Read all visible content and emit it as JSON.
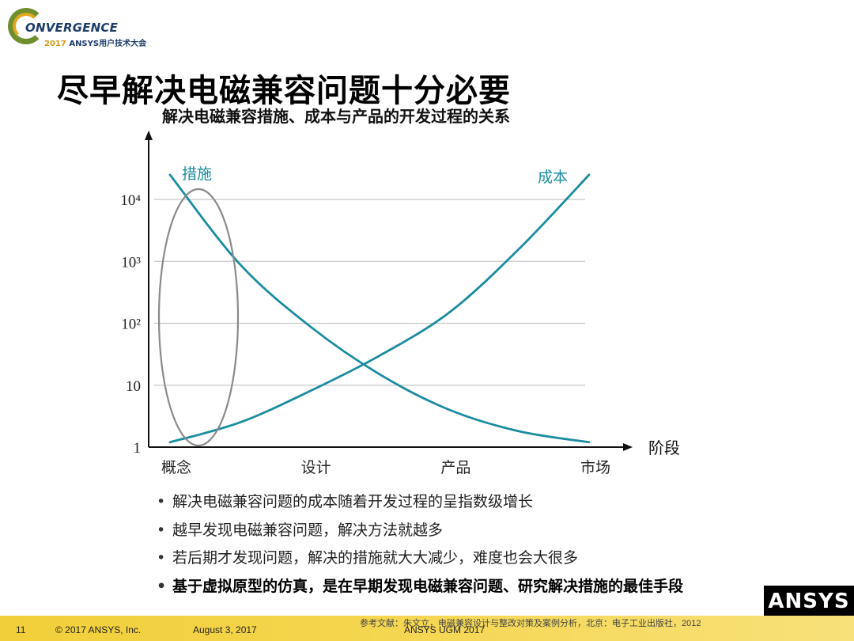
{
  "logo": {
    "brand_text": "ONVERGENCE",
    "year": "2017",
    "event": "ANSYS用户技术大会"
  },
  "title": "尽早解决电磁兼容问题十分必要",
  "chart_data": {
    "type": "line",
    "title": "解决电磁兼容措施、成本与产品的开发过程的关系",
    "xlabel": "阶段",
    "ylabel": "",
    "categories": [
      "概念",
      "设计",
      "产品",
      "市场"
    ],
    "yscale": "log",
    "ylim": [
      1,
      100000
    ],
    "yticks": [
      "1",
      "10",
      "10²",
      "10³",
      "10⁴"
    ],
    "grid": true,
    "series": [
      {
        "name": "措施",
        "color": "#1a8ca0",
        "x": [
          0,
          0.5,
          1,
          1.5,
          2,
          2.5,
          3
        ],
        "y": [
          25000,
          900,
          90,
          15,
          4,
          1.8,
          1.2
        ]
      },
      {
        "name": "成本",
        "color": "#1a8ca0",
        "x": [
          0,
          0.5,
          1,
          1.5,
          2,
          2.5,
          3
        ],
        "y": [
          1.2,
          2.5,
          8,
          30,
          150,
          1600,
          25000
        ]
      }
    ],
    "annotation": "ellipse around 概念 stage"
  },
  "bullets": [
    {
      "text": "解决电磁兼容问题的成本随着开发过程的呈指数级增长",
      "bold": false
    },
    {
      "text": "越早发现电磁兼容问题，解决方法就越多",
      "bold": false
    },
    {
      "text": "若后期才发现问题，解决的措施就大大减少，难度也会大很多",
      "bold": false
    },
    {
      "text": "基于虚拟原型的仿真，是在早期发现电磁兼容问题、研究解决措施的最佳手段",
      "bold": true
    }
  ],
  "footer": {
    "page_number": "11",
    "copyright": "© 2017 ANSYS, Inc.",
    "date": "August 3, 2017",
    "event": "ANSYS UGM 2017",
    "reference": "参考文献：朱文立，电磁兼容设计与整改对策及案例分析，北京：电子工业出版社，2012"
  },
  "ansys_logo": "ANSYS",
  "colors": {
    "curve": "#1a8ca0",
    "ellipse": "#8a8a8a",
    "footer_bar": "#f2d245",
    "title": "#000000"
  }
}
